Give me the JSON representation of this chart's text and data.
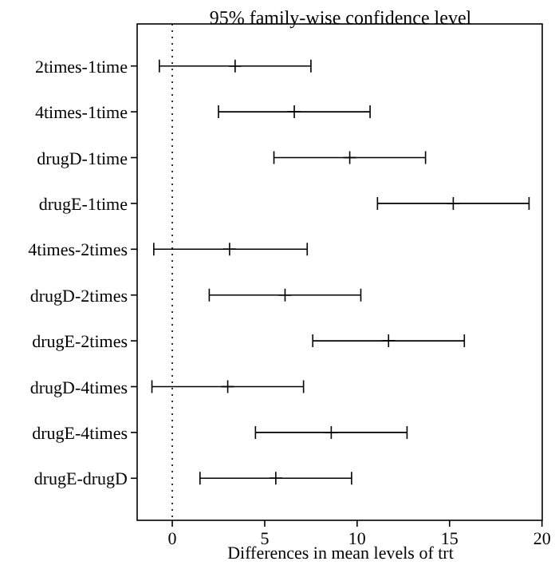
{
  "chart_data": {
    "type": "scatter",
    "orientation": "horizontal",
    "title": "95% family-wise confidence level",
    "xlabel": "Differences in mean levels of trt",
    "categories": [
      "2times-1time",
      "4times-1time",
      "drugD-1time",
      "drugE-1time",
      "4times-2times",
      "drugD-2times",
      "drugE-2times",
      "drugD-4times",
      "drugE-4times",
      "drugE-drugD"
    ],
    "values": [
      3.4,
      6.6,
      9.6,
      15.2,
      3.1,
      6.1,
      11.7,
      3.0,
      8.6,
      5.6
    ],
    "errors": [
      [
        -0.7,
        7.5
      ],
      [
        2.5,
        10.7
      ],
      [
        5.5,
        13.7
      ],
      [
        11.1,
        19.3
      ],
      [
        -1.0,
        7.3
      ],
      [
        2.0,
        10.2
      ],
      [
        7.6,
        15.8
      ],
      [
        -1.1,
        7.1
      ],
      [
        4.5,
        12.7
      ],
      [
        1.5,
        9.7
      ]
    ],
    "color": "#000000",
    "marker": "cross",
    "xlim": [
      -1.9,
      20.1
    ],
    "xticks": [
      0,
      5,
      10,
      15,
      20
    ],
    "ref_lines": [
      {
        "axis": "x",
        "value": 0,
        "line_style": "dotted",
        "color": "#000000"
      }
    ]
  }
}
